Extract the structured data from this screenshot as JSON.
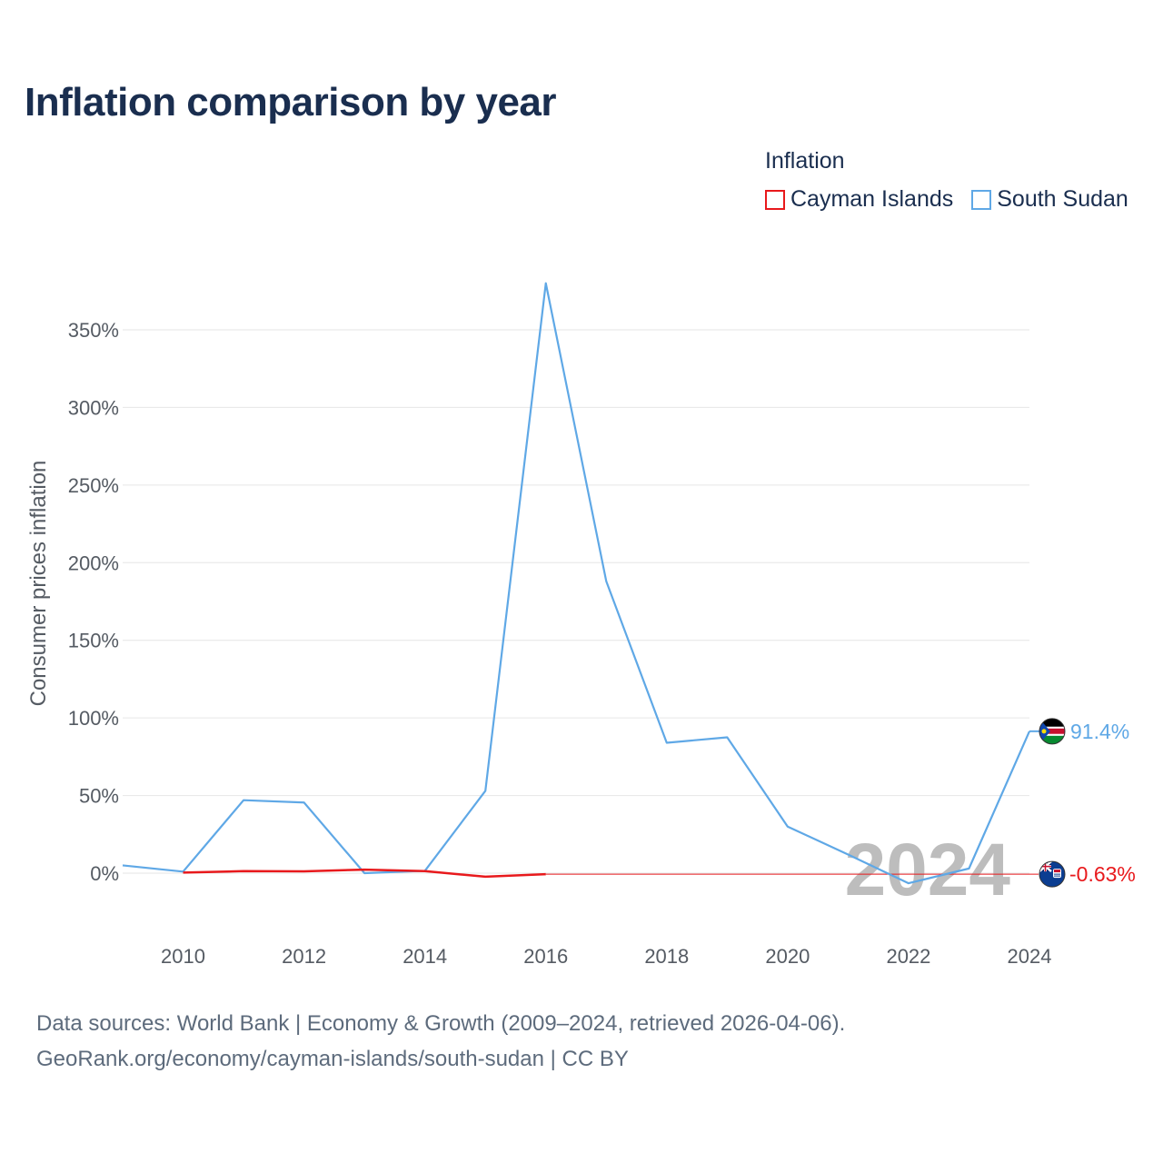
{
  "title": "Inflation comparison by year",
  "legend": {
    "heading": "Inflation",
    "items": [
      {
        "label": "Cayman Islands",
        "color": "#e8191c"
      },
      {
        "label": "South Sudan",
        "color": "#5fa8e6"
      }
    ]
  },
  "footer": {
    "line1": "Data sources: World Bank | Economy & Growth (2009–2024, retrieved 2026-04-06).",
    "line2": "GeoRank.org/economy/cayman-islands/south-sudan | CC BY"
  },
  "chart_data": {
    "type": "line",
    "title": "Inflation comparison by year",
    "ylabel": "Consumer prices inflation",
    "xlabel": "",
    "xlim": [
      2009,
      2024
    ],
    "ylim": [
      -30,
      380
    ],
    "x_ticks": [
      2010,
      2012,
      2014,
      2016,
      2018,
      2020,
      2022,
      2024
    ],
    "x_tick_labels": [
      "2010",
      "2012",
      "2014",
      "2016",
      "2018",
      "2020",
      "2022",
      "2024"
    ],
    "y_ticks": [
      0,
      50,
      100,
      150,
      200,
      250,
      300,
      350
    ],
    "y_tick_labels": [
      "0%",
      "50%",
      "100%",
      "150%",
      "200%",
      "250%",
      "300%",
      "350%"
    ],
    "grid": true,
    "watermark": "2024",
    "series": [
      {
        "name": "South Sudan",
        "color": "#5fa8e6",
        "x": [
          2009,
          2010,
          2011,
          2012,
          2013,
          2014,
          2015,
          2016,
          2017,
          2018,
          2019,
          2020,
          2021,
          2022,
          2023,
          2024
        ],
        "values": [
          5,
          1,
          47,
          45.5,
          0,
          1.5,
          53,
          380,
          188,
          84,
          87.5,
          30,
          12,
          -6.5,
          3,
          91.4
        ],
        "end_label": "91.4%"
      },
      {
        "name": "Cayman Islands",
        "color": "#e8191c",
        "x": [
          2010,
          2011,
          2012,
          2013,
          2014,
          2015,
          2016
        ],
        "values": [
          0.4,
          1.3,
          1.2,
          2.3,
          1.3,
          -2.3,
          -0.63
        ],
        "extend_to": 2024,
        "end_value": -0.63,
        "end_label": "-0.63%"
      }
    ]
  }
}
